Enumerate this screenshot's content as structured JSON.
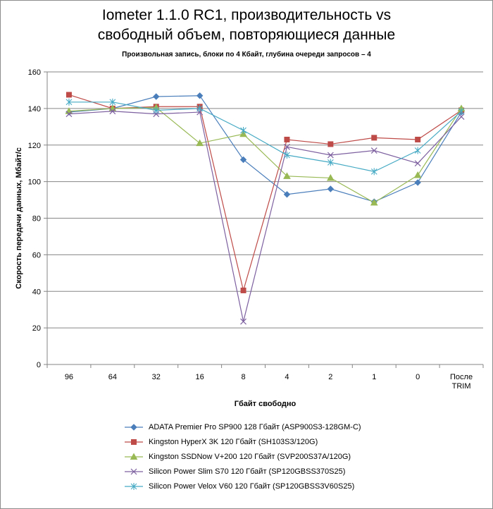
{
  "chart_data": {
    "type": "line",
    "title_line1": "Iometer 1.1.0 RC1, производительность vs",
    "title_line2": "свободный объем, повторяющиеся данные",
    "subtitle": "Произвольная  запись, блоки по 4 Кбайт, глубина очереди запросов – 4",
    "xlabel": "Гбайт свободно",
    "ylabel": "Скорость  передачи данных, Мбайт/с",
    "ylim": [
      0,
      160
    ],
    "yticks": [
      "0",
      "20",
      "40",
      "60",
      "80",
      "100",
      "120",
      "140",
      "160"
    ],
    "grid": true,
    "legend_position": "bottom",
    "categories": [
      "96",
      "64",
      "32",
      "16",
      "8",
      "4",
      "2",
      "1",
      "0",
      "После TRIM"
    ],
    "category_lines": [
      [
        "96"
      ],
      [
        "64"
      ],
      [
        "32"
      ],
      [
        "16"
      ],
      [
        "8"
      ],
      [
        "4"
      ],
      [
        "2"
      ],
      [
        "1"
      ],
      [
        "0"
      ],
      [
        "После",
        "TRIM"
      ]
    ],
    "series": [
      {
        "name": "ADATA  Premier Pro SP900 128 Гбайт (ASP900S3-128GM-C)",
        "color": "#4a7ebb",
        "marker": "diamond",
        "values": [
          138,
          140,
          146.5,
          147,
          112,
          93,
          96,
          89,
          99.5,
          138
        ]
      },
      {
        "name": "Kingston HyperX  3K 120 Гбайт (SH103S3/120G)",
        "color": "#be4b48",
        "marker": "square",
        "values": [
          147.5,
          140,
          141,
          141,
          40.5,
          123,
          120.5,
          124,
          123,
          139
        ]
      },
      {
        "name": "Kingston SSDNow  V+200 120 Гбайт (SVP200S37A/120G)",
        "color": "#98b954",
        "marker": "triangle",
        "values": [
          138.5,
          140,
          140.5,
          121,
          126,
          103,
          102,
          88.5,
          103.5,
          140
        ]
      },
      {
        "name": "Silicon Power Slim S70 120 Гбайт (SP120GBSS370S25)",
        "color": "#7d60a0",
        "marker": "x",
        "values": [
          137,
          138.5,
          137,
          138,
          23.5,
          119,
          114.5,
          117,
          110,
          135.5
        ]
      },
      {
        "name": "Silicon Power Velox V60 120 Гбайт (SP120GBSS3V60S25)",
        "color": "#46aac4",
        "marker": "star",
        "values": [
          143.5,
          143.5,
          139,
          140,
          128,
          114.5,
          110.5,
          105.5,
          117,
          138.5
        ]
      }
    ]
  }
}
